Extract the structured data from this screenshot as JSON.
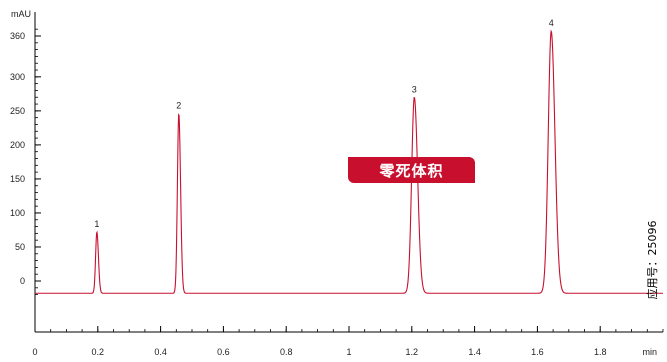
{
  "chart_data": {
    "type": "line",
    "title": "",
    "xlabel": "min",
    "ylabel": "mAU",
    "xlim": [
      0,
      2.0
    ],
    "ylim": [
      -20,
      380
    ],
    "x_ticks": [
      0,
      0.2,
      0.4,
      0.6,
      0.8,
      1,
      1.2,
      1.4,
      1.6,
      1.8
    ],
    "y_ticks": [
      0,
      50,
      100,
      150,
      200,
      250,
      300,
      360
    ],
    "baseline": -18,
    "series": [
      {
        "color": "#c8102e",
        "peaks": [
          {
            "label": "1",
            "x": 0.197,
            "y": 72,
            "width": 0.004
          },
          {
            "label": "2",
            "x": 0.458,
            "y": 246,
            "width": 0.0045
          },
          {
            "label": "3",
            "x": 1.208,
            "y": 270,
            "width": 0.0085
          },
          {
            "label": "4",
            "x": 1.644,
            "y": 367,
            "width": 0.0095
          }
        ]
      }
    ],
    "grid": false,
    "legend": "none"
  },
  "badge": {
    "text": "零死体积",
    "color": "#c8102e"
  },
  "app_number": "应用号：25096"
}
